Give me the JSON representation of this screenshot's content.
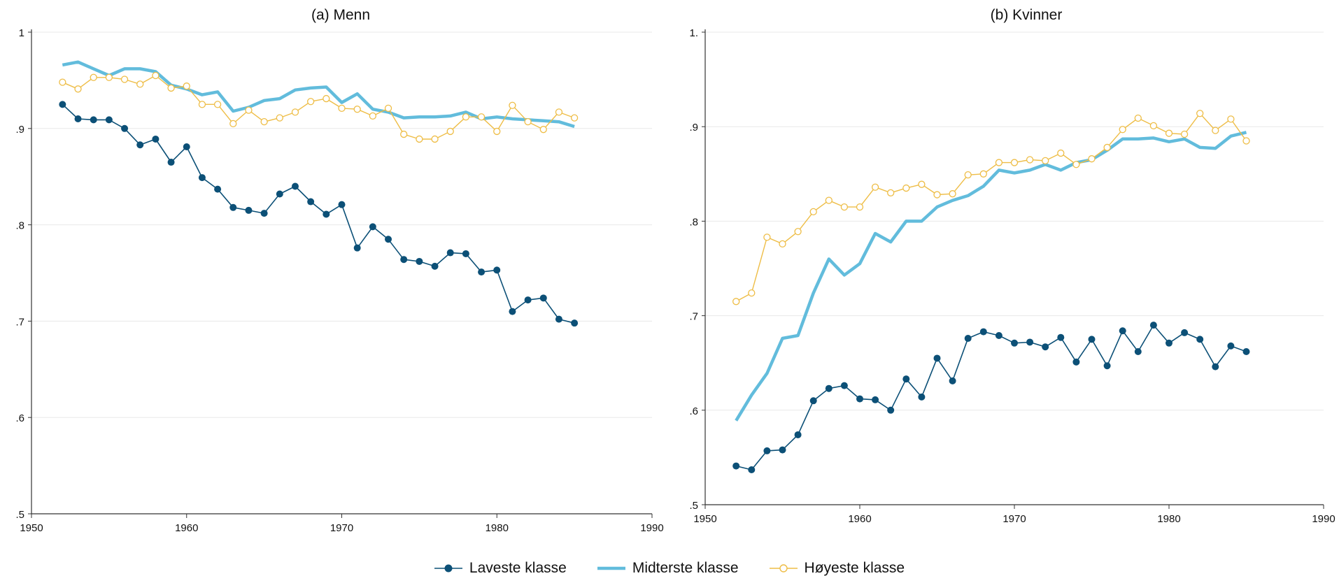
{
  "colors": {
    "lowest": "#0c5077",
    "middle": "#62bcdc",
    "highest": "#eebd46",
    "axis": "#333333",
    "grid": "#e8e8e8"
  },
  "legend": [
    {
      "key": "lowest",
      "label": "Laveste klasse"
    },
    {
      "key": "middle",
      "label": "Midterste klasse"
    },
    {
      "key": "highest",
      "label": "Høyeste klasse"
    }
  ],
  "chart_data": [
    {
      "type": "line",
      "title": "(a) Menn",
      "xlabel": "",
      "ylabel": "",
      "xlim": [
        1950,
        1990
      ],
      "ylim": [
        0.5,
        1.0
      ],
      "xticks": [
        "1950",
        "1960",
        "1970",
        "1980",
        "1990"
      ],
      "yticks": [
        ".5",
        ".6",
        ".7",
        ".8",
        ".9",
        "1"
      ],
      "grid": true,
      "x": [
        1952,
        1953,
        1954,
        1955,
        1956,
        1957,
        1958,
        1959,
        1960,
        1961,
        1962,
        1963,
        1964,
        1965,
        1966,
        1967,
        1968,
        1969,
        1970,
        1971,
        1972,
        1973,
        1974,
        1975,
        1976,
        1977,
        1978,
        1979,
        1980,
        1981,
        1982,
        1983,
        1984,
        1985
      ],
      "series": [
        {
          "name": "Laveste klasse",
          "key": "lowest",
          "values": [
            0.925,
            0.91,
            0.909,
            0.909,
            0.9,
            0.883,
            0.889,
            0.865,
            0.881,
            0.849,
            0.837,
            0.818,
            0.815,
            0.812,
            0.832,
            0.84,
            0.824,
            0.811,
            0.821,
            0.776,
            0.798,
            0.785,
            0.764,
            0.762,
            0.757,
            0.771,
            0.77,
            0.751,
            0.753,
            0.71,
            0.722,
            0.724,
            0.702,
            0.698
          ]
        },
        {
          "name": "Midterste klasse",
          "key": "middle",
          "values": [
            0.966,
            0.969,
            0.962,
            0.955,
            0.962,
            0.962,
            0.959,
            0.945,
            0.941,
            0.935,
            0.938,
            0.918,
            0.922,
            0.929,
            0.931,
            0.94,
            0.942,
            0.943,
            0.927,
            0.936,
            0.92,
            0.917,
            0.911,
            0.912,
            0.912,
            0.913,
            0.917,
            0.91,
            0.912,
            0.91,
            0.909,
            0.908,
            0.907,
            0.902
          ]
        },
        {
          "name": "Høyeste klasse",
          "key": "highest",
          "values": [
            0.948,
            0.941,
            0.953,
            0.953,
            0.951,
            0.946,
            0.955,
            0.942,
            0.944,
            0.925,
            0.925,
            0.905,
            0.919,
            0.907,
            0.911,
            0.917,
            0.928,
            0.931,
            0.921,
            0.92,
            0.913,
            0.921,
            0.894,
            0.889,
            0.889,
            0.897,
            0.912,
            0.912,
            0.897,
            0.924,
            0.907,
            0.899,
            0.917,
            0.911
          ]
        }
      ]
    },
    {
      "type": "line",
      "title": "(b) Kvinner",
      "xlabel": "",
      "ylabel": "",
      "xlim": [
        1950,
        1990
      ],
      "ylim": [
        0.5,
        1.0
      ],
      "xticks": [
        "1950",
        "1960",
        "1970",
        "1980",
        "1990"
      ],
      "yticks": [
        ".5",
        ".6",
        ".7",
        ".8",
        ".9",
        "1."
      ],
      "grid": true,
      "x": [
        1952,
        1953,
        1954,
        1955,
        1956,
        1957,
        1958,
        1959,
        1960,
        1961,
        1962,
        1963,
        1964,
        1965,
        1966,
        1967,
        1968,
        1969,
        1970,
        1971,
        1972,
        1973,
        1974,
        1975,
        1976,
        1977,
        1978,
        1979,
        1980,
        1981,
        1982,
        1983,
        1984,
        1985
      ],
      "series": [
        {
          "name": "Laveste klasse",
          "key": "lowest",
          "values": [
            0.541,
            0.537,
            0.557,
            0.558,
            0.574,
            0.61,
            0.623,
            0.626,
            0.612,
            0.611,
            0.6,
            0.633,
            0.614,
            0.655,
            0.631,
            0.676,
            0.683,
            0.679,
            0.671,
            0.672,
            0.667,
            0.677,
            0.651,
            0.675,
            0.647,
            0.684,
            0.662,
            0.69,
            0.671,
            0.682,
            0.675,
            0.646,
            0.668,
            0.662
          ]
        },
        {
          "name": "Midterste klasse",
          "key": "middle",
          "values": [
            0.589,
            0.616,
            0.639,
            0.676,
            0.679,
            0.724,
            0.76,
            0.743,
            0.755,
            0.787,
            0.778,
            0.8,
            0.8,
            0.815,
            0.822,
            0.827,
            0.837,
            0.854,
            0.851,
            0.854,
            0.86,
            0.854,
            0.862,
            0.865,
            0.875,
            0.887,
            0.887,
            0.888,
            0.884,
            0.887,
            0.878,
            0.877,
            0.89,
            0.894
          ]
        },
        {
          "name": "Høyeste klasse",
          "key": "highest",
          "values": [
            0.715,
            0.724,
            0.783,
            0.776,
            0.789,
            0.81,
            0.822,
            0.815,
            0.815,
            0.836,
            0.83,
            0.835,
            0.839,
            0.828,
            0.829,
            0.849,
            0.85,
            0.862,
            0.862,
            0.865,
            0.864,
            0.872,
            0.86,
            0.866,
            0.878,
            0.897,
            0.909,
            0.901,
            0.893,
            0.892,
            0.914,
            0.896,
            0.908,
            0.885
          ]
        }
      ]
    }
  ]
}
